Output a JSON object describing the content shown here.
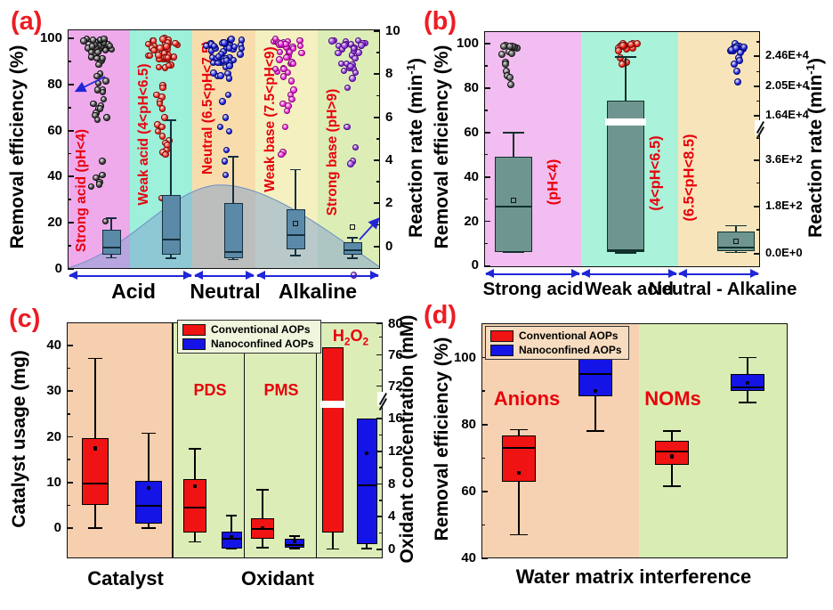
{
  "ui": {
    "legend": {
      "items": [
        {
          "label": "Conventional AOPs",
          "color": "#f01313"
        },
        {
          "label": "Nanoconfined AOPs",
          "color": "#1414e6"
        }
      ]
    }
  },
  "chart_data": [
    {
      "id": "a",
      "panel_label": "(a)",
      "type": "box+swarm-scatter",
      "ylabel_left": "Removal efficiency (%)",
      "ylabel_right_parts": {
        "pre": "Reaction rate (min",
        "sup": "-1",
        "post": ")"
      },
      "yticks_left": [
        0,
        20,
        40,
        60,
        80,
        100
      ],
      "yticks_right": [
        0,
        2,
        4,
        6,
        8,
        10
      ],
      "ylim_left": [
        0,
        104
      ],
      "ylim_right": [
        -1,
        10.4
      ],
      "band_labels": [
        "Strong acid (pH<4)",
        "Weak acid (4<pH<6.5)",
        "Neutral (6.5<pH<7.5)",
        "Weak base (7.5<pH<9)",
        "Strong base (pH>9)"
      ],
      "group_labels": [
        "Acid",
        "Neutral",
        "Alkaline"
      ],
      "band_colors": [
        "#efaaec",
        "#9df0d9",
        "#f8dcab",
        "#f4f0c0",
        "#dcedb6"
      ],
      "box_fill": "#5b89a8",
      "background_curve": {
        "shape": "skewed bell",
        "peak_x_frac": 0.47,
        "peak_y_pct": 35,
        "fill": "#7d9fd0",
        "opacity": 0.5
      },
      "note": "scatter read on left % axis; boxes read on right rate axis",
      "scatter": [
        {
          "color": "#3d3d3d",
          "edge": "#101010",
          "dense_count": 34,
          "dense_range": [
            87,
            100.5
          ],
          "tail": [
            85,
            84,
            82,
            81,
            78,
            78,
            77,
            74,
            72,
            71,
            70,
            70,
            68,
            67,
            66,
            65,
            47,
            41,
            40,
            38,
            37,
            36,
            21
          ]
        },
        {
          "color": "#ee2419",
          "edge": "#7d0b06",
          "dense_count": 40,
          "dense_range": [
            84,
            100.5
          ],
          "tail": [
            80,
            79,
            76,
            75,
            73,
            72,
            70,
            66,
            63,
            62,
            60,
            58,
            56,
            55,
            54,
            52,
            51,
            50,
            31
          ]
        },
        {
          "color": "#2121dd",
          "edge": "#000a70",
          "dense_count": 48,
          "dense_range": [
            79,
            100.5
          ],
          "tail": [
            76,
            73,
            66,
            62,
            60,
            52,
            47,
            41
          ]
        },
        {
          "color": "#ee22d8",
          "edge": "#84077a",
          "dense_count": 34,
          "dense_range": [
            80,
            100.5
          ],
          "tail": [
            78,
            76,
            74,
            72,
            71,
            69,
            62,
            51,
            50
          ]
        },
        {
          "color": "#8d2fd6",
          "edge": "#4a0b80",
          "dense_count": 28,
          "dense_range": [
            82,
            100.5
          ],
          "tail": [
            79,
            62,
            53,
            47,
            46,
            -2.5
          ]
        }
      ],
      "boxes": [
        {
          "whisker_low": 4.8,
          "q1": 6.2,
          "median": 9,
          "q3": 17,
          "whisker_high": 22
        },
        {
          "whisker_low": 4.5,
          "q1": 6,
          "median": 12.8,
          "q3": 32,
          "whisker_high": 64.5
        },
        {
          "whisker_low": 3.9,
          "q1": 4.5,
          "median": 7.1,
          "q3": 28.4,
          "whisker_high": 48.6
        },
        {
          "whisker_low": 5.8,
          "q1": 8.4,
          "median": 14.5,
          "q3": 25.8,
          "whisker_high": 43,
          "mean": 19.6
        },
        {
          "whisker_low": 4.5,
          "q1": 6,
          "median": 8,
          "q3": 11.5,
          "whisker_high": 13.5,
          "outliers": [
            18
          ]
        }
      ]
    },
    {
      "id": "b",
      "panel_label": "(b)",
      "type": "box+scatter",
      "ylabel_left": "Removal efficiency (%)",
      "ylabel_right_parts": {
        "pre": "Reaction rate (min",
        "sup": "-1",
        "post": ")"
      },
      "yticks_left": [
        0,
        20,
        40,
        60,
        80,
        100
      ],
      "yticks_right_labels": [
        "0.0E+0",
        "1.8E+2",
        "3.6E+2",
        "1.64E+4",
        "2.05E+4",
        "2.46E+4"
      ],
      "axis_break_right": true,
      "band_labels": [
        "(pH<4)",
        "(4<pH<6.5)",
        "(6.5<pH<8.5)"
      ],
      "group_labels": [
        "Strong acid",
        "Weak acid",
        "Neutral - Alkaline"
      ],
      "band_colors": [
        "#f2bdf0",
        "#aaf2d9",
        "#f8e4bb"
      ],
      "box_fill": "#6f9590",
      "scatter": [
        {
          "color": "#4a4a4a",
          "edge": "#141414",
          "dense_count": 10,
          "dense_range": [
            94,
            100.5
          ],
          "tail": [
            92,
            91,
            88,
            86,
            85,
            82
          ]
        },
        {
          "color": "#ee1a10",
          "edge": "#7d0b06",
          "dense_count": 14,
          "dense_range": [
            97,
            100.5
          ],
          "tail": [
            94,
            92,
            91
          ]
        },
        {
          "color": "#1d1de0",
          "edge": "#000a70",
          "dense_count": 12,
          "dense_range": [
            96,
            100.5
          ],
          "tail": [
            94,
            93,
            91,
            88,
            83
          ]
        }
      ],
      "boxes": [
        {
          "whisker_low": 6,
          "q1": 6.2,
          "median": 26.8,
          "q3": 49,
          "whisker_high": 60,
          "mean": 29.5
        },
        {
          "whisker_low": 5.8,
          "q1": 6.2,
          "median": 6.8,
          "q3": 74.5,
          "whisker_high": 94,
          "gap": [
            63.2,
            66.4
          ]
        },
        {
          "whisker_low": 6,
          "q1": 6.7,
          "median": 8.3,
          "q3": 15.6,
          "whisker_high": 18,
          "mean": 11
        }
      ]
    },
    {
      "id": "c",
      "panel_label": "(c)",
      "type": "grouped-box",
      "ylabel_left": "Catalyst usage (mg)",
      "ylabel_right": "Oxidant concentration (mM)",
      "yticks_left": [
        0,
        10,
        20,
        30,
        40
      ],
      "yticks_right_lower": [
        0,
        4,
        8,
        12,
        16
      ],
      "yticks_right_upper": [
        72,
        76,
        80
      ],
      "axis_break_right": true,
      "section_labels": [
        "PDS",
        "PMS"
      ],
      "h2o2_parts": {
        "t1": "H",
        "s1": "2",
        "t2": "O",
        "s2": "2"
      },
      "x_group_labels": [
        "Catalyst",
        "Oxidant"
      ],
      "band_colors": [
        "#f6cfae",
        "#dcedb8"
      ],
      "series": [
        "Conventional AOPs",
        "Nanoconfined AOPs"
      ],
      "boxes": [
        {
          "group": "Catalyst",
          "series": "Conventional AOPs",
          "axis": "left",
          "unit": "mg",
          "whisker_low": 0,
          "q1": 5,
          "median": 9.8,
          "q3": 19.8,
          "whisker_high": 37.2,
          "mean": 17.5
        },
        {
          "group": "Catalyst",
          "series": "Nanoconfined AOPs",
          "axis": "left",
          "unit": "mg",
          "whisker_low": 0,
          "q1": 0.9,
          "median": 4.8,
          "q3": 10.3,
          "whisker_high": 20.8,
          "mean": 8.8
        },
        {
          "group": "PDS",
          "series": "Conventional AOPs",
          "axis": "right",
          "unit": "mM",
          "whisker_low": 0.9,
          "q1": 2.0,
          "median": 5.1,
          "q3": 8.6,
          "whisker_high": 12.3,
          "mean": 7.7
        },
        {
          "group": "PDS",
          "series": "Nanoconfined AOPs",
          "axis": "right",
          "unit": "mM",
          "whisker_low": 0,
          "q1": 0.1,
          "median": 1.3,
          "q3": 2.2,
          "whisker_high": 4.1,
          "mean": 1.5
        },
        {
          "group": "PMS",
          "series": "Conventional AOPs",
          "axis": "right",
          "unit": "mM",
          "whisker_low": 0.2,
          "q1": 1.3,
          "median": 2.5,
          "q3": 3.8,
          "whisker_high": 7.3,
          "mean": 2.6
        },
        {
          "group": "PMS",
          "series": "Nanoconfined AOPs",
          "axis": "right",
          "unit": "mM",
          "whisker_low": 0.1,
          "q1": 0.2,
          "median": 0.55,
          "q3": 1.25,
          "whisker_high": 1.6,
          "mean": 1.0
        },
        {
          "group": "H2O2",
          "series": "Conventional AOPs",
          "axis": "right",
          "unit": "mM",
          "whisker_low": 0,
          "q1": 2.0,
          "q3": 77,
          "gap": [
            34.5,
            47
          ]
        },
        {
          "group": "H2O2",
          "series": "Nanoconfined AOPs",
          "axis": "right",
          "unit": "mM",
          "whisker_low": 0.1,
          "q1": 0.65,
          "median": 7.8,
          "q3": 16,
          "mean": 11.8
        }
      ]
    },
    {
      "id": "d",
      "panel_label": "(d)",
      "type": "grouped-box",
      "ylabel_left": "Removal efficiency (%)",
      "yticks_left": [
        40,
        60,
        80,
        100
      ],
      "section_labels": [
        "Anions",
        "NOMs"
      ],
      "xlabel": "Water matrix interference",
      "band_colors": [
        "#f6d2b2",
        "#d9ecb4"
      ],
      "series": [
        "Conventional AOPs",
        "Nanoconfined AOPs"
      ],
      "boxes": [
        {
          "group": "Anions",
          "series": "Conventional AOPs",
          "whisker_low": 47,
          "q1": 63,
          "median": 73,
          "q3": 76.8,
          "whisker_high": 78.5,
          "mean": 65.5
        },
        {
          "group": "Anions",
          "series": "Nanoconfined AOPs",
          "whisker_low": 78,
          "q1": 88.5,
          "median": 95,
          "q3": 99.5,
          "whisker_high": 100,
          "mean": 90
        },
        {
          "group": "NOMs",
          "series": "Conventional AOPs",
          "whisker_low": 61.5,
          "q1": 68,
          "median": 72,
          "q3": 75,
          "whisker_high": 78,
          "mean": 70.5
        },
        {
          "group": "NOMs",
          "series": "Nanoconfined AOPs",
          "whisker_low": 86.5,
          "q1": 90,
          "median": 91,
          "q3": 95,
          "whisker_high": 100,
          "mean": 92.5
        }
      ]
    }
  ]
}
